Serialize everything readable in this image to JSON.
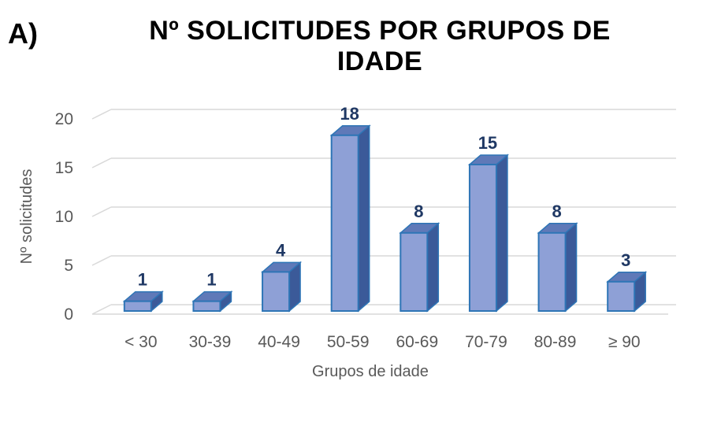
{
  "panel_label": "A)",
  "chart_data": {
    "type": "bar",
    "title": "Nº SOLICITUDES POR GRUPOS DE IDADE",
    "xlabel": "Grupos de idade",
    "ylabel": "Nº solicitudes",
    "categories": [
      "< 30",
      "30-39",
      "40-49",
      "50-59",
      "60-69",
      "70-79",
      "80-89",
      "≥ 90"
    ],
    "values": [
      1,
      1,
      4,
      18,
      8,
      15,
      8,
      3
    ],
    "ylim": [
      0,
      20
    ],
    "yticks": [
      "0",
      "5",
      "10",
      "15",
      "20"
    ],
    "grid": true,
    "style": "3d-column",
    "colors": {
      "front": "#8ea0d6",
      "side": "#3b5a99",
      "top": "#5f79b8",
      "border": "#2e75b6",
      "grid": "#d9d9d9"
    }
  }
}
